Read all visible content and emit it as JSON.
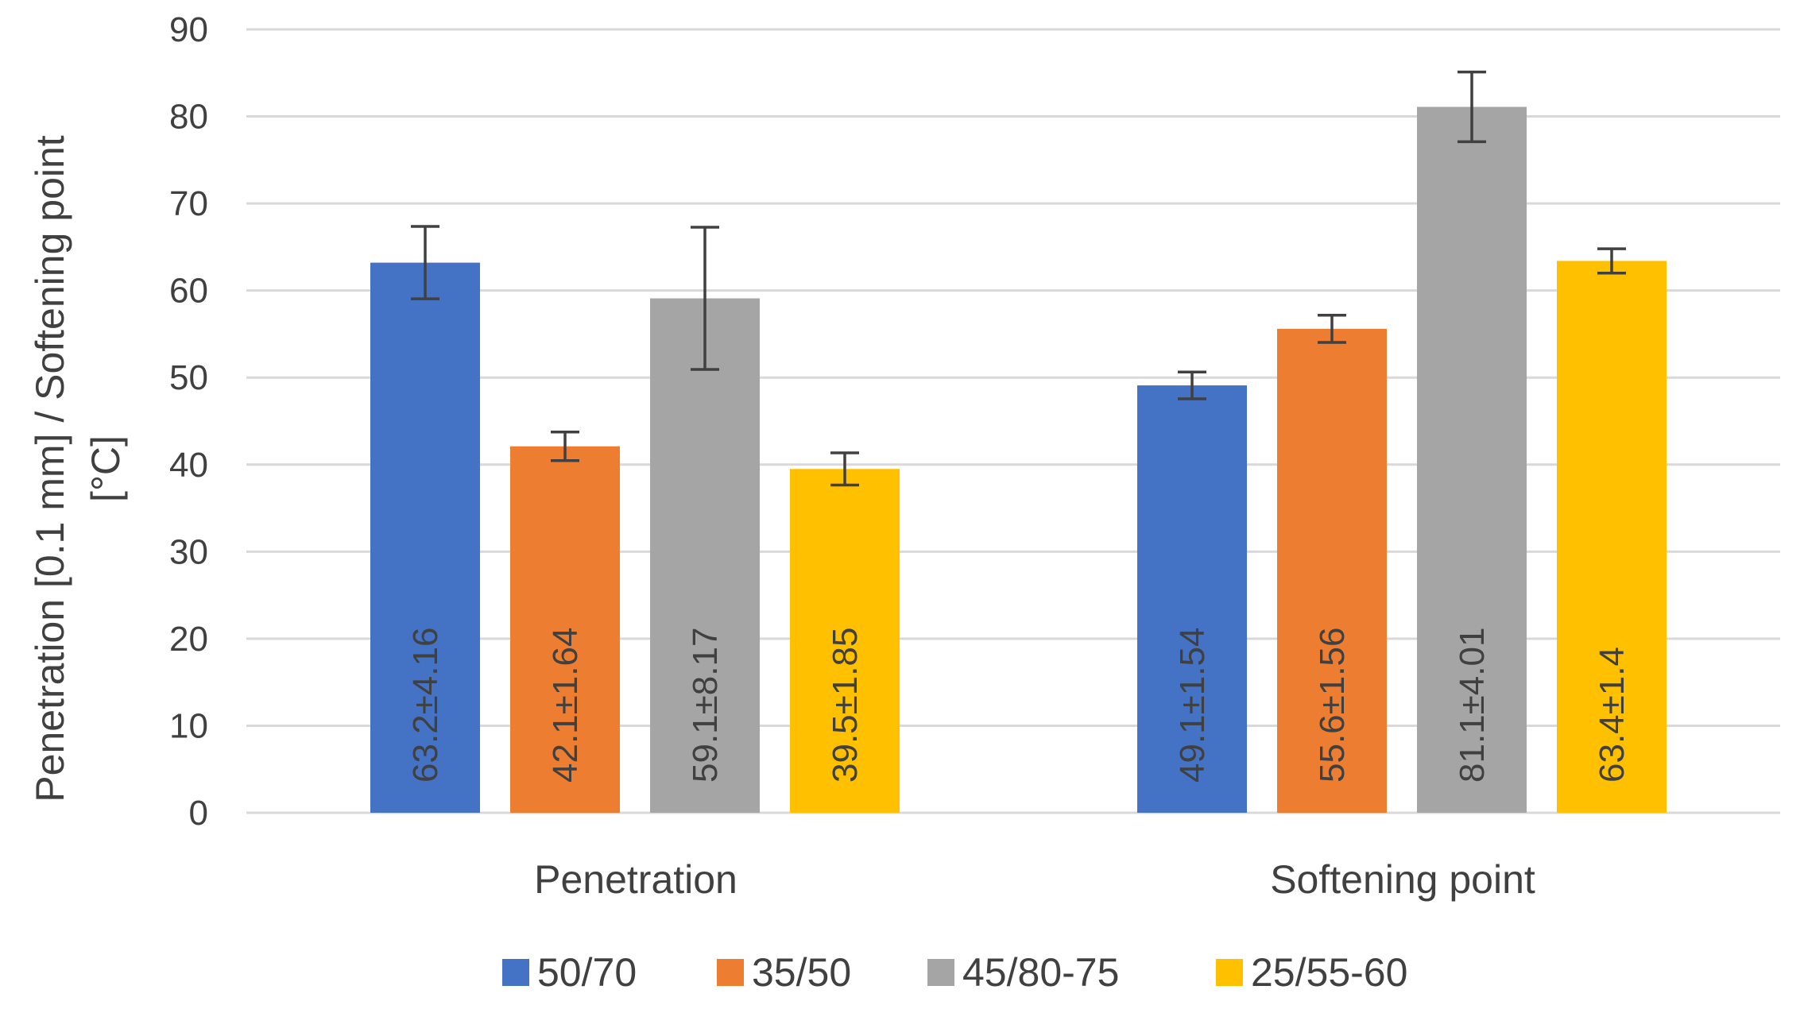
{
  "chart_data": {
    "type": "bar",
    "title": "",
    "ylabel_lines": [
      "Penetration [0.1 mm] / Softening point",
      "[°C]"
    ],
    "xlabel": "",
    "ylim": [
      0,
      90
    ],
    "yticks": [
      "0",
      "10",
      "20",
      "30",
      "40",
      "50",
      "60",
      "70",
      "80",
      "90"
    ],
    "grid": true,
    "legend_position": "bottom",
    "categories": [
      "Penetration",
      "Softening point"
    ],
    "series": [
      {
        "name": "50/70",
        "color": "#4472c4",
        "values": [
          63.2,
          49.1
        ],
        "errors": [
          4.16,
          1.54
        ],
        "labels": [
          "63.2±4.16",
          "49.1±1.54"
        ]
      },
      {
        "name": "35/50",
        "color": "#ed7d31",
        "values": [
          42.1,
          55.6
        ],
        "errors": [
          1.64,
          1.56
        ],
        "labels": [
          "42.1±1.64",
          "55.6±1.56"
        ]
      },
      {
        "name": "45/80-75",
        "color": "#a5a5a5",
        "values": [
          59.1,
          81.1
        ],
        "errors": [
          8.17,
          4.01
        ],
        "labels": [
          "59.1±8.17",
          "81.1±4.01"
        ]
      },
      {
        "name": "25/55-60",
        "color": "#ffc000",
        "values": [
          39.5,
          63.4
        ],
        "errors": [
          1.85,
          1.4
        ],
        "labels": [
          "39.5±1.85",
          "63.4±1.4"
        ]
      }
    ]
  }
}
